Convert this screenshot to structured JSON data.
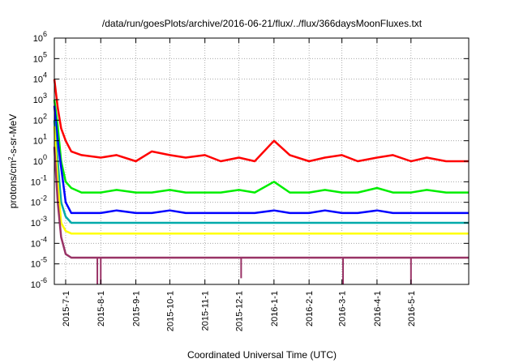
{
  "chart_data": {
    "type": "line",
    "title": "/data/run/goesPlots/archive/2016-06-21/flux/../flux/366daysMoonFluxes.txt",
    "xlabel": "Coordinated Universal Time (UTC)",
    "ylabel_base": "protons/cm",
    "ylabel_sup": "2",
    "ylabel_tail": "-s-sr-MeV",
    "yscale": "log",
    "ylim": [
      1e-06,
      1000000.0
    ],
    "xlim": [
      "2015-06-21",
      "2016-06-21"
    ],
    "grid": true,
    "y_ticks": [
      {
        "base": "10",
        "exp": "-6",
        "value": 1e-06
      },
      {
        "base": "10",
        "exp": "-5",
        "value": 1e-05
      },
      {
        "base": "10",
        "exp": "-4",
        "value": 0.0001
      },
      {
        "base": "10",
        "exp": "-3",
        "value": 0.001
      },
      {
        "base": "10",
        "exp": "-2",
        "value": 0.01
      },
      {
        "base": "10",
        "exp": "-1",
        "value": 0.1
      },
      {
        "base": "10",
        "exp": "0",
        "value": 1
      },
      {
        "base": "10",
        "exp": "1",
        "value": 10
      },
      {
        "base": "10",
        "exp": "2",
        "value": 100
      },
      {
        "base": "10",
        "exp": "3",
        "value": 1000
      },
      {
        "base": "10",
        "exp": "4",
        "value": 10000
      },
      {
        "base": "10",
        "exp": "5",
        "value": 100000
      },
      {
        "base": "10",
        "exp": "6",
        "value": 1000000
      }
    ],
    "x_ticks": [
      "2015-7-1",
      "2015-8-1",
      "2015-9-1",
      "2015-10-1",
      "2015-11-1",
      "2015-12-1",
      "2016-1-1",
      "2016-2-1",
      "2016-3-1",
      "2016-4-1",
      "2016-5-1"
    ],
    "x": [
      "2015-06-21",
      "2015-06-24",
      "2015-06-27",
      "2015-07-01",
      "2015-07-06",
      "2015-07-15",
      "2015-08-01",
      "2015-08-15",
      "2015-09-01",
      "2015-09-15",
      "2015-10-01",
      "2015-10-15",
      "2015-11-01",
      "2015-11-15",
      "2015-12-01",
      "2015-12-15",
      "2016-01-01",
      "2016-01-15",
      "2016-02-01",
      "2016-02-15",
      "2016-03-01",
      "2016-03-15",
      "2016-04-01",
      "2016-04-15",
      "2016-05-01",
      "2016-05-15",
      "2016-06-01",
      "2016-06-21"
    ],
    "series": [
      {
        "color": "#ff0000",
        "values": [
          10000,
          400,
          40,
          10,
          3,
          2,
          1.5,
          2,
          1,
          3,
          2,
          1.5,
          2,
          1,
          1.5,
          1,
          10,
          2,
          1,
          1.5,
          2,
          1,
          1.5,
          2,
          1,
          1.5,
          1,
          1
        ]
      },
      {
        "color": "#00ee00",
        "values": [
          1000,
          50,
          1,
          0.1,
          0.05,
          0.03,
          0.03,
          0.04,
          0.03,
          0.03,
          0.04,
          0.03,
          0.03,
          0.03,
          0.04,
          0.03,
          0.1,
          0.03,
          0.03,
          0.04,
          0.03,
          0.03,
          0.05,
          0.03,
          0.03,
          0.04,
          0.03,
          0.03
        ]
      },
      {
        "color": "#0000ff",
        "values": [
          500,
          10,
          0.5,
          0.01,
          0.003,
          0.003,
          0.003,
          0.004,
          0.003,
          0.003,
          0.004,
          0.003,
          0.003,
          0.003,
          0.003,
          0.003,
          0.004,
          0.003,
          0.003,
          0.004,
          0.003,
          0.003,
          0.004,
          0.003,
          0.003,
          0.003,
          0.003,
          0.003
        ]
      },
      {
        "color": "#00aaaa",
        "values": [
          100,
          1,
          0.01,
          0.002,
          0.001,
          0.001,
          0.001,
          0.001,
          0.001,
          0.001,
          0.001,
          0.001,
          0.001,
          0.001,
          0.001,
          0.001,
          0.001,
          0.001,
          0.001,
          0.001,
          0.001,
          0.001,
          0.001,
          0.001,
          0.001,
          0.001,
          0.001,
          0.001
        ]
      },
      {
        "color": "#ffff00",
        "values": [
          50,
          0.1,
          0.001,
          0.0004,
          0.0003,
          0.0003,
          0.0003,
          0.0003,
          0.0003,
          0.0003,
          0.0003,
          0.0003,
          0.0003,
          0.0003,
          0.0003,
          0.0003,
          0.0003,
          0.0003,
          0.0003,
          0.0003,
          0.0003,
          0.0003,
          0.0003,
          0.0003,
          0.0003,
          0.0003,
          0.0003,
          0.0003
        ]
      },
      {
        "color": "#993366",
        "values": [
          5,
          0.01,
          0.0002,
          3e-05,
          2e-05,
          2e-05,
          2e-05,
          2e-05,
          2e-05,
          2e-05,
          2e-05,
          2e-05,
          2e-05,
          2e-05,
          2e-05,
          2e-05,
          2e-05,
          2e-05,
          2e-05,
          2e-05,
          2e-05,
          2e-05,
          2e-05,
          2e-05,
          2e-05,
          2e-05,
          2e-05,
          2e-05
        ]
      }
    ],
    "dips": [
      {
        "color": "#993366",
        "x": "2015-07-29",
        "y": 1e-06
      },
      {
        "color": "#993366",
        "x": "2015-08-01",
        "y": 1e-06
      },
      {
        "color": "#993366",
        "x": "2015-12-03",
        "y": 2e-06
      },
      {
        "color": "#993366",
        "x": "2016-03-02",
        "y": 1e-06
      },
      {
        "color": "#993366",
        "x": "2016-05-01",
        "y": 1e-06
      }
    ]
  }
}
